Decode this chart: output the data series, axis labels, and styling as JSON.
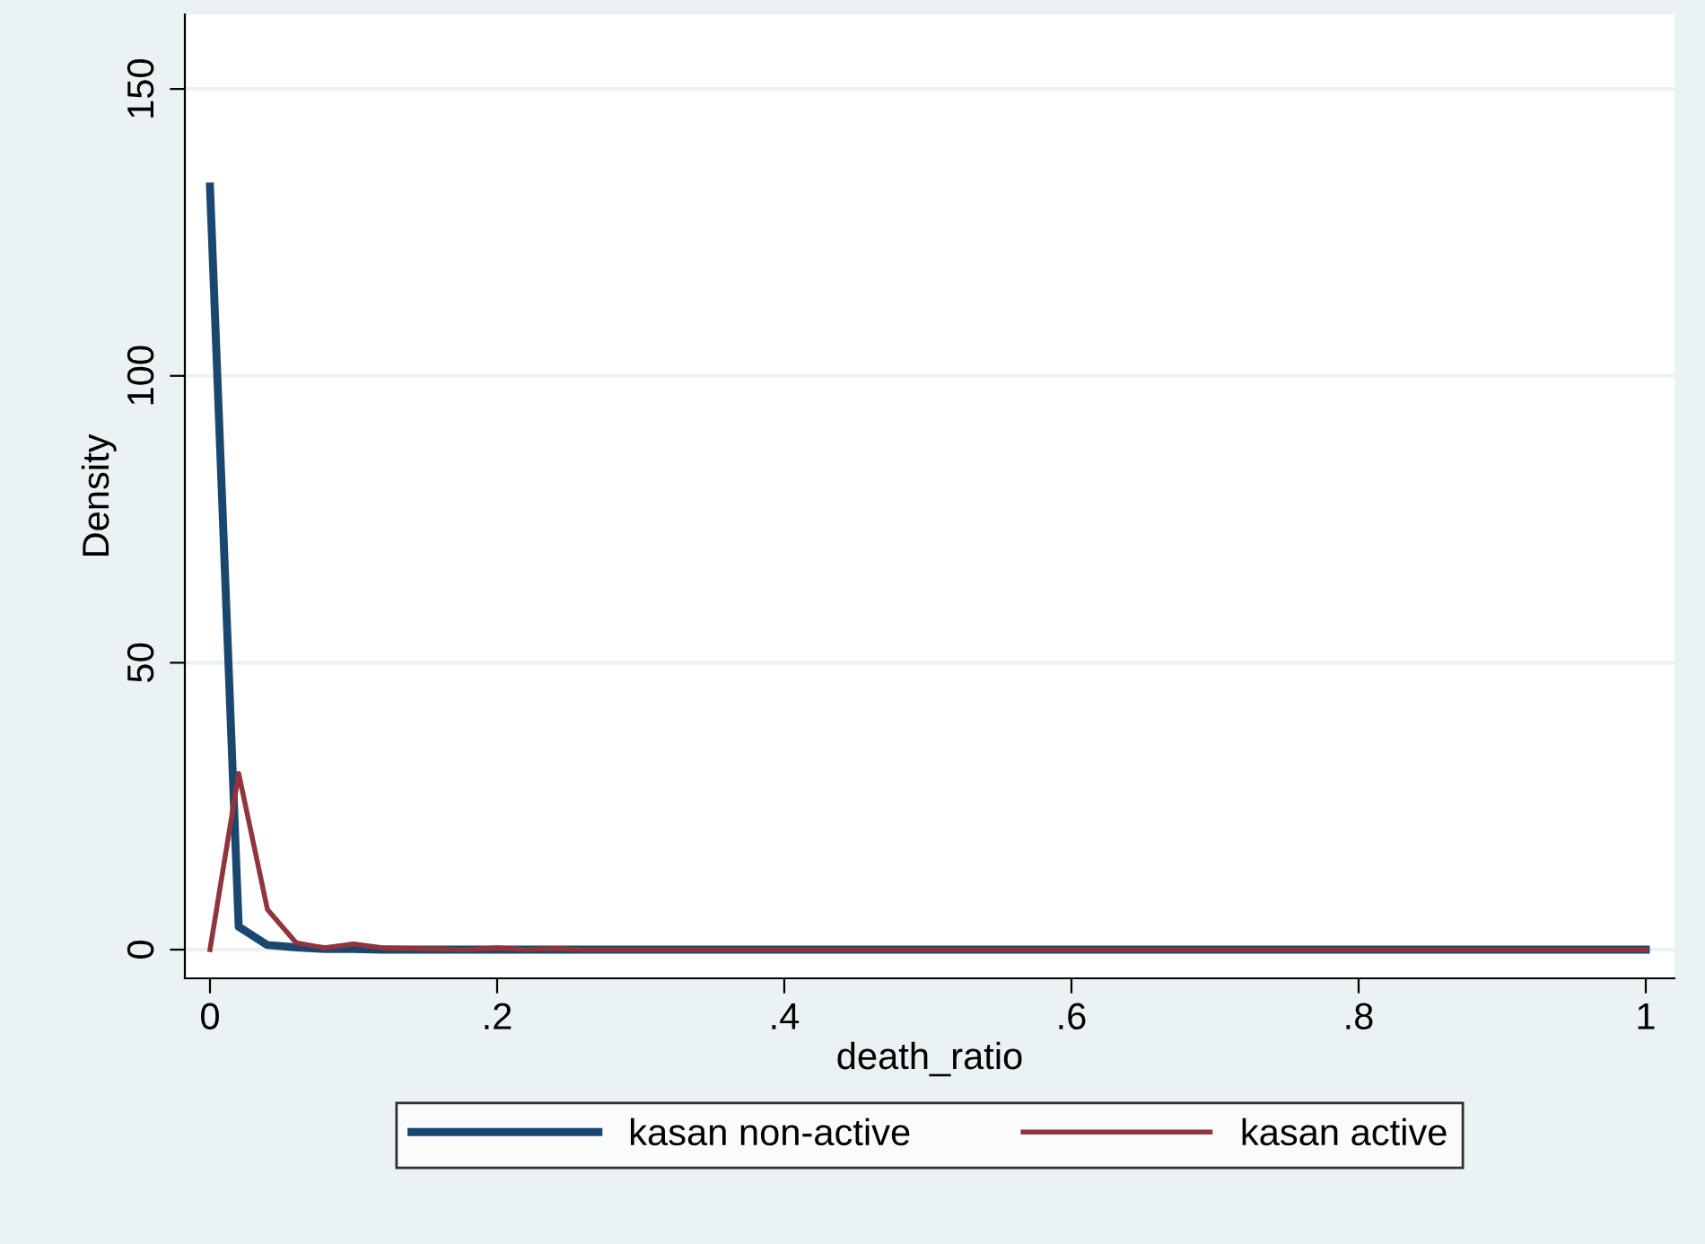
{
  "chart_data": {
    "type": "line",
    "xlabel": "death_ratio",
    "ylabel": "Density",
    "xlim": [
      -0.0175,
      1.02
    ],
    "ylim": [
      -5,
      163
    ],
    "xticks": [
      {
        "value": 0,
        "label": "0"
      },
      {
        "value": 0.2,
        "label": ".2"
      },
      {
        "value": 0.4,
        "label": ".4"
      },
      {
        "value": 0.6,
        "label": ".6"
      },
      {
        "value": 0.8,
        "label": ".8"
      },
      {
        "value": 1,
        "label": "1"
      }
    ],
    "yticks": [
      0,
      50,
      100,
      150
    ],
    "grid": "y",
    "legend": "bottom",
    "series": [
      {
        "name": "kasan non-active",
        "color": "#1a476f",
        "x": [
          0,
          0.02,
          0.04,
          0.06,
          0.08,
          0.1,
          0.12,
          0.14,
          0.16,
          0.2,
          0.3,
          1.0
        ],
        "values": [
          133,
          4,
          0.8,
          0.4,
          0.1,
          0.1,
          0,
          0,
          0,
          0,
          0,
          0
        ]
      },
      {
        "name": "kasan active",
        "color": "#90353b",
        "x": [
          0,
          0.02,
          0.04,
          0.06,
          0.08,
          0.1,
          0.12,
          0.14,
          0.16,
          0.18,
          0.2,
          0.22,
          0.24,
          0.26,
          0.3,
          1.0
        ],
        "values": [
          0,
          30.7,
          7,
          1.2,
          0.3,
          1.0,
          0.3,
          0.2,
          0.1,
          0,
          0.3,
          0,
          0.2,
          0,
          0,
          0
        ]
      }
    ]
  }
}
